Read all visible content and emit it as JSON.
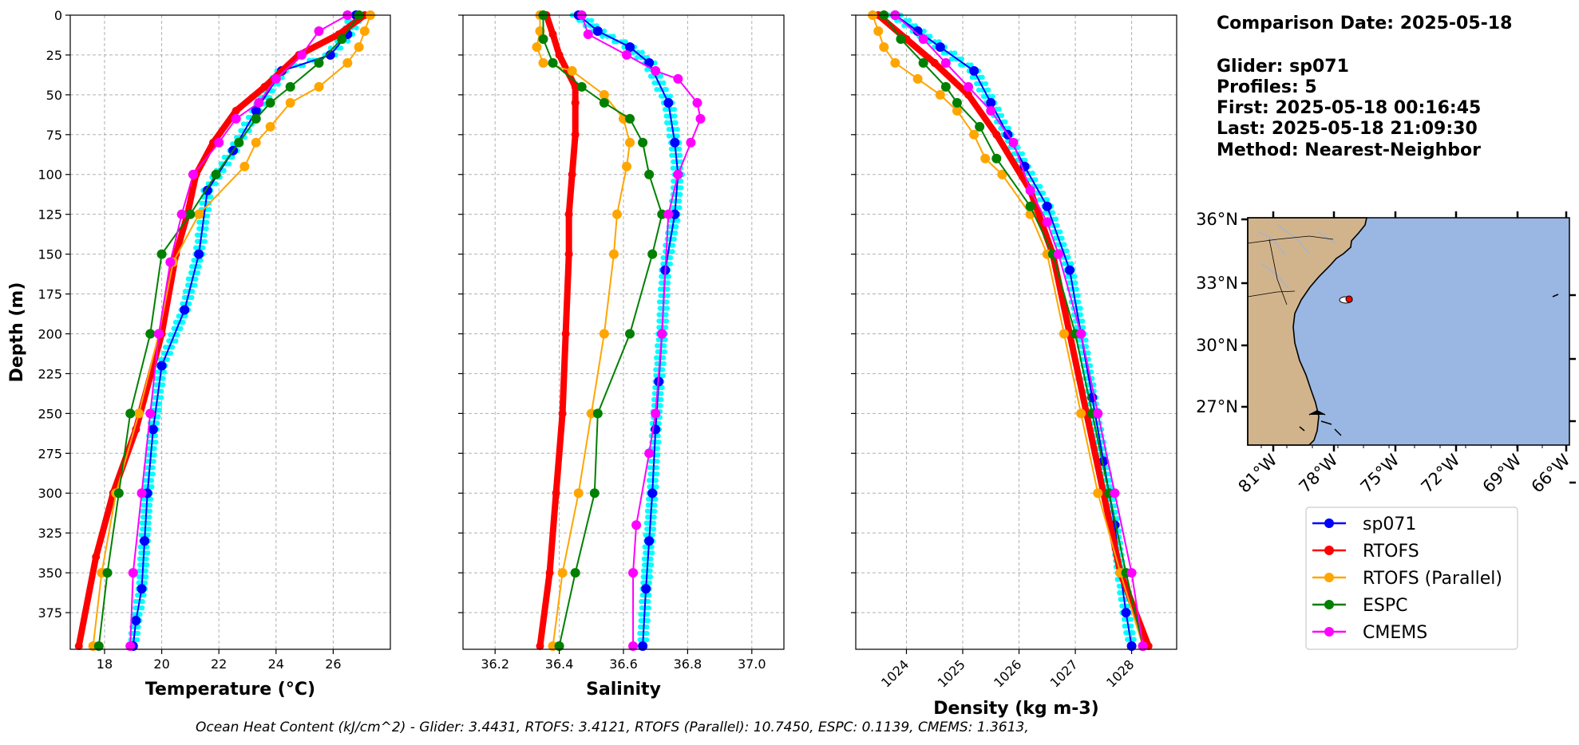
{
  "chart_data": [
    {
      "type": "line",
      "id": "temperature",
      "xlabel": "Temperature (°C)",
      "ylabel": "Depth (m)",
      "xlim": [
        16.8,
        28.0
      ],
      "ylim": [
        398,
        0
      ],
      "xticks": [
        18,
        20,
        22,
        24,
        26
      ],
      "yticks": [
        0,
        25,
        50,
        75,
        100,
        125,
        150,
        175,
        200,
        225,
        250,
        275,
        300,
        325,
        350,
        375
      ],
      "grid": true,
      "series": [
        {
          "name": "sp071",
          "x": [
            26.8,
            26.5,
            25.9,
            24.2,
            23.3,
            22.5,
            21.6,
            21.3,
            20.8,
            20.0,
            19.7,
            19.5,
            19.4,
            19.3,
            19.1,
            19.0
          ],
          "y": [
            0,
            12,
            25,
            35,
            60,
            85,
            110,
            150,
            185,
            220,
            260,
            300,
            330,
            360,
            380,
            396
          ]
        },
        {
          "name": "RTOFS",
          "x": [
            27.1,
            26.2,
            24.8,
            23.6,
            22.6,
            21.8,
            21.2,
            20.9,
            20.5,
            20.0,
            19.1,
            18.3,
            17.7,
            17.1
          ],
          "y": [
            0,
            12,
            25,
            45,
            60,
            80,
            100,
            125,
            150,
            200,
            260,
            300,
            340,
            396
          ]
        },
        {
          "name": "RTOFS (Parallel)",
          "x": [
            27.3,
            27.1,
            26.9,
            26.5,
            25.5,
            24.5,
            23.8,
            23.3,
            22.9,
            21.3,
            20.4,
            19.9,
            19.2,
            18.4,
            17.9,
            17.6
          ],
          "y": [
            0,
            10,
            20,
            30,
            45,
            55,
            70,
            80,
            95,
            125,
            155,
            200,
            250,
            300,
            350,
            396
          ]
        },
        {
          "name": "ESPC",
          "x": [
            26.9,
            26.3,
            25.5,
            24.5,
            23.8,
            23.3,
            22.7,
            21.9,
            21.0,
            20.0,
            19.6,
            18.9,
            18.5,
            18.1,
            17.8
          ],
          "y": [
            0,
            15,
            30,
            45,
            55,
            65,
            80,
            100,
            125,
            150,
            200,
            250,
            300,
            350,
            396
          ]
        },
        {
          "name": "CMEMS",
          "x": [
            26.5,
            25.5,
            24.9,
            24.0,
            23.4,
            22.6,
            22.0,
            21.1,
            20.7,
            20.3,
            19.9,
            19.6,
            19.3,
            19.0,
            18.9
          ],
          "y": [
            0,
            10,
            25,
            40,
            55,
            65,
            80,
            100,
            125,
            155,
            200,
            250,
            300,
            350,
            396
          ]
        }
      ]
    },
    {
      "type": "line",
      "id": "salinity",
      "xlabel": "Salinity",
      "ylim": [
        398,
        0
      ],
      "xlim": [
        36.1,
        37.1
      ],
      "xticks": [
        36.2,
        36.4,
        36.6,
        36.8,
        37.0
      ],
      "yticks": [
        0,
        25,
        50,
        75,
        100,
        125,
        150,
        175,
        200,
        225,
        250,
        275,
        300,
        325,
        350,
        375
      ],
      "grid": true,
      "series": [
        {
          "name": "sp071",
          "x": [
            36.46,
            36.52,
            36.62,
            36.68,
            36.74,
            36.76,
            36.77,
            36.76,
            36.73,
            36.72,
            36.71,
            36.7,
            36.69,
            36.68,
            36.67,
            36.66
          ],
          "y": [
            0,
            10,
            20,
            30,
            55,
            80,
            100,
            125,
            160,
            200,
            230,
            260,
            300,
            330,
            360,
            396
          ]
        },
        {
          "name": "RTOFS",
          "x": [
            36.36,
            36.38,
            36.4,
            36.45,
            36.45,
            36.45,
            36.44,
            36.43,
            36.43,
            36.42,
            36.41,
            36.39,
            36.37,
            36.34
          ],
          "y": [
            0,
            12,
            25,
            45,
            55,
            75,
            100,
            125,
            150,
            200,
            250,
            300,
            350,
            396
          ]
        },
        {
          "name": "RTOFS (Parallel)",
          "x": [
            36.34,
            36.34,
            36.33,
            36.35,
            36.44,
            36.54,
            36.6,
            36.62,
            36.61,
            36.58,
            36.57,
            36.54,
            36.5,
            36.46,
            36.41,
            36.38
          ],
          "y": [
            0,
            10,
            20,
            30,
            35,
            50,
            65,
            80,
            95,
            125,
            150,
            200,
            250,
            300,
            350,
            396
          ]
        },
        {
          "name": "ESPC",
          "x": [
            36.35,
            36.35,
            36.38,
            36.47,
            36.54,
            36.62,
            36.66,
            36.68,
            36.72,
            36.69,
            36.62,
            36.52,
            36.51,
            36.45,
            36.4
          ],
          "y": [
            0,
            15,
            30,
            45,
            55,
            65,
            80,
            100,
            125,
            150,
            200,
            250,
            300,
            350,
            396
          ]
        },
        {
          "name": "CMEMS",
          "x": [
            36.47,
            36.49,
            36.61,
            36.7,
            36.77,
            36.83,
            36.84,
            36.81,
            36.77,
            36.74,
            36.72,
            36.7,
            36.68,
            36.64,
            36.63,
            36.63
          ],
          "y": [
            0,
            12,
            25,
            35,
            40,
            55,
            65,
            80,
            100,
            125,
            200,
            250,
            275,
            320,
            350,
            396
          ]
        }
      ]
    },
    {
      "type": "line",
      "id": "density",
      "xlabel": "Density (kg m-3)",
      "ylim": [
        398,
        0
      ],
      "xlim": [
        1023.1,
        1028.8
      ],
      "xticks": [
        1024,
        1025,
        1026,
        1027,
        1028
      ],
      "yticks": [
        0,
        25,
        50,
        75,
        100,
        125,
        150,
        175,
        200,
        225,
        250,
        275,
        300,
        325,
        350,
        375
      ],
      "grid": true,
      "series": [
        {
          "name": "sp071",
          "x": [
            1023.8,
            1024.2,
            1024.6,
            1025.2,
            1025.5,
            1025.8,
            1026.1,
            1026.5,
            1026.9,
            1027.1,
            1027.3,
            1027.5,
            1027.7,
            1027.8,
            1027.9,
            1028.0
          ],
          "y": [
            0,
            10,
            20,
            35,
            55,
            75,
            95,
            120,
            160,
            200,
            240,
            280,
            320,
            350,
            375,
            396
          ]
        },
        {
          "name": "RTOFS",
          "x": [
            1023.5,
            1024.0,
            1024.5,
            1025.1,
            1025.6,
            1026.2,
            1026.6,
            1026.9,
            1027.2,
            1027.5,
            1027.8,
            1028.3
          ],
          "y": [
            0,
            15,
            30,
            50,
            75,
            110,
            150,
            200,
            250,
            300,
            350,
            396
          ]
        },
        {
          "name": "RTOFS (Parallel)",
          "x": [
            1023.4,
            1023.5,
            1023.6,
            1023.8,
            1024.2,
            1024.6,
            1024.9,
            1025.2,
            1025.4,
            1025.7,
            1026.2,
            1026.5,
            1026.8,
            1027.1,
            1027.4,
            1027.8,
            1028.2
          ],
          "y": [
            0,
            10,
            20,
            30,
            40,
            50,
            60,
            75,
            90,
            100,
            125,
            150,
            200,
            250,
            300,
            350,
            396
          ]
        },
        {
          "name": "ESPC",
          "x": [
            1023.6,
            1023.9,
            1024.3,
            1024.7,
            1024.9,
            1025.3,
            1025.6,
            1026.2,
            1026.6,
            1027.0,
            1027.3,
            1027.6,
            1027.9,
            1028.2
          ],
          "y": [
            0,
            15,
            30,
            45,
            55,
            70,
            90,
            120,
            150,
            200,
            250,
            300,
            350,
            396
          ]
        },
        {
          "name": "CMEMS",
          "x": [
            1023.8,
            1024.3,
            1024.7,
            1025.1,
            1025.5,
            1025.9,
            1026.2,
            1026.5,
            1026.7,
            1027.1,
            1027.4,
            1027.7,
            1028.0,
            1028.2
          ],
          "y": [
            0,
            15,
            30,
            45,
            60,
            80,
            110,
            130,
            150,
            200,
            250,
            300,
            350,
            396
          ]
        }
      ]
    }
  ],
  "colors": {
    "sp071": "#0000ff",
    "RTOFS": "#ff0000",
    "RTOFS (Parallel)": "#ffa500",
    "ESPC": "#008000",
    "CMEMS": "#ff00ff",
    "glider_points": "#00ffff",
    "land": "#d2b48c",
    "ocean": "#99b7e2"
  },
  "info": {
    "line1": "Comparison Date: 2025-05-18",
    "line2": "Glider: sp071",
    "line3": "Profiles: 5",
    "line4": "First: 2025-05-18 00:16:45",
    "line5": "Last: 2025-05-18 21:09:30",
    "line6": "Method: Nearest-Neighbor"
  },
  "map": {
    "lat_ticks": [
      "36°N",
      "33°N",
      "30°N",
      "27°N"
    ],
    "lon_ticks": [
      "81°W",
      "78°W",
      "75°W",
      "72°W",
      "69°W",
      "66°W"
    ],
    "glider_location": {
      "lon": -77.2,
      "lat": 32.2
    }
  },
  "legend": {
    "entries": [
      "sp071",
      "RTOFS",
      "RTOFS (Parallel)",
      "ESPC",
      "CMEMS"
    ]
  },
  "footer": "Ocean Heat Content (kJ/cm^2) - Glider: 3.4431,  RTOFS: 3.4121,  RTOFS (Parallel): 10.7450,  ESPC: 0.1139,  CMEMS: 1.3613,"
}
